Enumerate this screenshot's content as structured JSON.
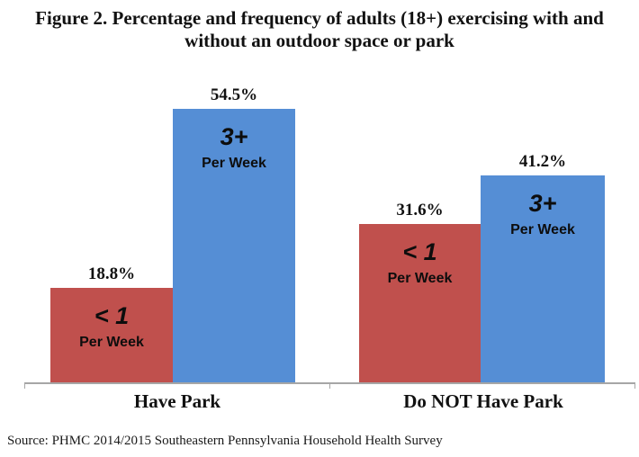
{
  "title": "Figure 2. Percentage and frequency of adults (18+) exercising with and without an outdoor space or park",
  "source": "Source: PHMC 2014/2015 Southeastern Pennsylvania Household Health Survey",
  "colors": {
    "less_than_1_bar": "#c0504d",
    "three_plus_bar": "#558ed5",
    "axis": "#a6a6a6",
    "text": "#111111"
  },
  "chart_data": {
    "type": "bar",
    "categories": [
      "Have Park",
      "Do NOT Have Park"
    ],
    "series": [
      {
        "name": "< 1 Per Week",
        "values": [
          18.8,
          31.6
        ],
        "color": "#c0504d"
      },
      {
        "name": "3+ Per Week",
        "values": [
          54.5,
          41.2
        ],
        "color": "#558ed5"
      }
    ],
    "title": "Figure 2. Percentage and frequency of adults (18+) exercising with and without an outdoor space or park",
    "xlabel": "",
    "ylabel": "",
    "ylim": [
      0,
      61
    ],
    "grid": false,
    "legend_position": "none (labels inside bars)",
    "bars": [
      {
        "group": "Have Park",
        "series": "< 1 Per Week",
        "value": 18.8,
        "label": "18.8%",
        "freq": "< 1",
        "freq_sub": "Per Week",
        "color": "#c0504d"
      },
      {
        "group": "Have Park",
        "series": "3+ Per Week",
        "value": 54.5,
        "label": "54.5%",
        "freq": "3+",
        "freq_sub": "Per Week",
        "color": "#558ed5"
      },
      {
        "group": "Do NOT Have Park",
        "series": "< 1 Per Week",
        "value": 31.6,
        "label": "31.6%",
        "freq": "< 1",
        "freq_sub": "Per Week",
        "color": "#c0504d"
      },
      {
        "group": "Do NOT Have Park",
        "series": "3+ Per Week",
        "value": 41.2,
        "label": "41.2%",
        "freq": "3+",
        "freq_sub": "Per Week",
        "color": "#558ed5"
      }
    ]
  }
}
